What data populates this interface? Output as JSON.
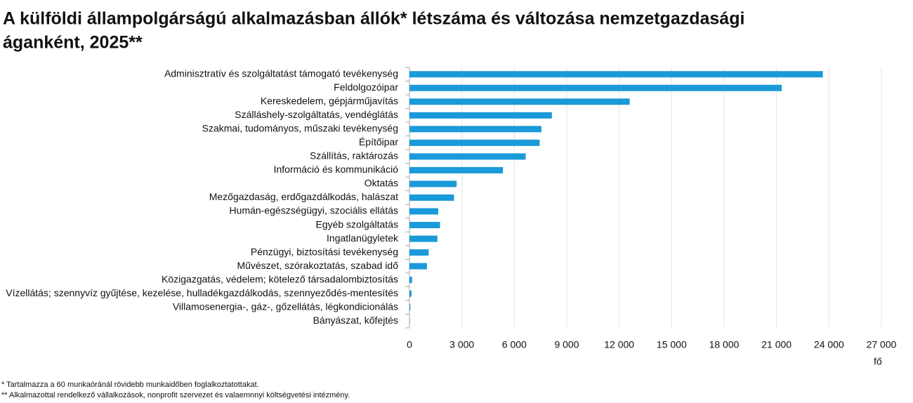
{
  "chart_data": {
    "type": "bar",
    "orientation": "horizontal",
    "title": "A külföldi állampolgárságú alkalmazásban állók* létszáma és változása nemzetgazdasági",
    "title_line2": "áganként, 2025**",
    "categories": [
      "Adminisztratív és szolgáltatást támogató tevékenység",
      "Feldolgozóipar",
      "Kereskedelem, gépjárműjavítás",
      "Szálláshely-szolgáltatás, vendéglátás",
      "Szakmai, tudományos, műszaki tevékenység",
      "Építőipar",
      "Szállítás, raktározás",
      "Információ és kommunikáció",
      "Oktatás",
      "Mezőgazdaság, erdőgazdálkodás, halászat",
      "Humán-egészségügyi, szociális ellátás",
      "Egyéb szolgáltatás",
      "Ingatlanügyletek",
      "Pénzügyi, biztosítási tevékenység",
      "Művészet, szórakoztatás, szabad idő",
      "Közigazgatás, védelem; kötelező társadalombiztosítás",
      "Vízellátás; szennyvíz gyűjtése, kezelése, hulladékgazdálkodás, szennyeződés-mentesítés",
      "Villamosenergia-, gáz-, gőzellátás, légkondicionálás",
      "Bányászat, kőfejtés"
    ],
    "values": [
      23650,
      21300,
      12600,
      8150,
      7550,
      7450,
      6650,
      5350,
      2700,
      2550,
      1650,
      1750,
      1600,
      1100,
      1000,
      150,
      120,
      50,
      20
    ],
    "color": "#1a9ad9",
    "xlim": [
      0,
      27000
    ],
    "xticks": [
      0,
      {
        "value": 3000,
        "label": "3 000"
      },
      {
        "value": 6000,
        "label": "6 000"
      },
      {
        "value": 9000,
        "label": "9 000"
      },
      {
        "value": 12000,
        "label": "12 000"
      },
      {
        "value": 15000,
        "label": "15 000"
      },
      {
        "value": 18000,
        "label": "18 000"
      },
      {
        "value": 21000,
        "label": "21 000"
      },
      {
        "value": 24000,
        "label": "24 000"
      },
      {
        "value": 27000,
        "label": "27 000"
      }
    ],
    "x_unit": "fő",
    "grid": true,
    "footnotes": [
      "* Tartalmazza a 60 munkaóránál rövidebb munkaidőben foglalkoztatottakat.",
      "** Alkalmazottal rendelkező vállalkozások, nonprofit szervezet és valaemnnyi költségvetési intézmény."
    ]
  }
}
